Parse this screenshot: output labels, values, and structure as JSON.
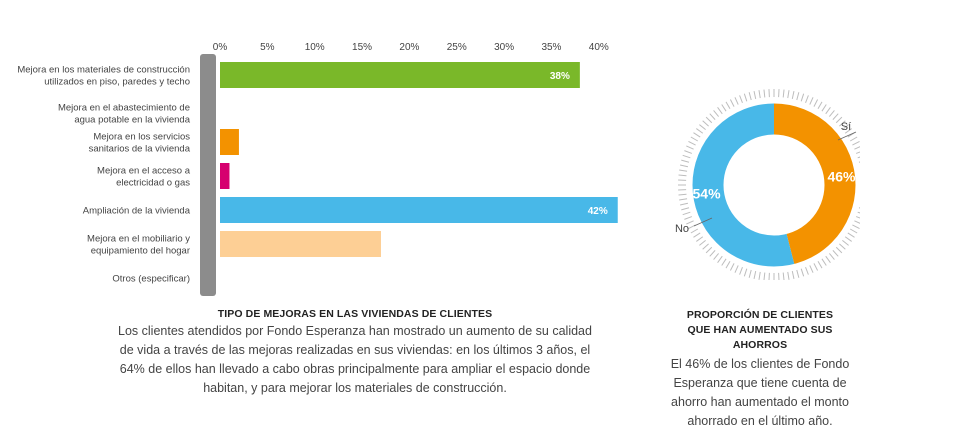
{
  "chart_data": [
    {
      "type": "bar",
      "orientation": "horizontal",
      "categories": [
        [
          "Mejora en los materiales de construcción",
          "utilizados en piso, paredes y techo"
        ],
        [
          "Mejora en el abastecimiento de",
          "agua potable en la vivienda"
        ],
        [
          "Mejora en los servicios",
          "sanitarios de la vivienda"
        ],
        [
          "Mejora en el acceso a",
          "electricidad o gas"
        ],
        [
          "Ampliación de la vivienda"
        ],
        [
          "Mejora en el mobiliario y",
          "equipamiento del hogar"
        ],
        [
          "Otros (especificar)"
        ]
      ],
      "values": [
        38,
        0,
        2,
        1,
        42,
        17,
        0
      ],
      "colors": [
        "#7ab829",
        "#7ab829",
        "#f39200",
        "#d6006f",
        "#48b8e8",
        "#fdcf95",
        "#cccccc"
      ],
      "data_labels": [
        "38%",
        "",
        "",
        "",
        "42%",
        "",
        ""
      ],
      "tick_labels": [
        "0%",
        "5%",
        "10%",
        "15%",
        "20%",
        "25%",
        "30%",
        "35%",
        "40%"
      ],
      "xlim": [
        0,
        42
      ],
      "title": "TIPO DE MEJORAS EN LAS VIVIENDAS DE CLIENTES",
      "xlabel": "",
      "ylabel": ""
    },
    {
      "type": "pie",
      "style": "donut",
      "categories": [
        "Sí",
        "No"
      ],
      "values": [
        46,
        54
      ],
      "labels": [
        "46%",
        "54%"
      ],
      "colors": [
        "#f39200",
        "#48b8e8"
      ],
      "title": "PROPORCIÓN DE CLIENTES QUE HAN AUMENTADO SUS AHORROS"
    }
  ],
  "left_caption": {
    "title": "TIPO DE MEJORAS EN LAS VIVIENDAS DE CLIENTES",
    "body": "Los clientes atendidos por Fondo Esperanza han mostrado un aumento de su calidad de vida a través de las mejoras realizadas en sus viviendas: en los últimos 3 años, el 64% de ellos han llevado a cabo obras principalmente para ampliar el espacio donde habitan, y para mejorar los materiales de construcción."
  },
  "right_caption": {
    "title_line1": "PROPORCIÓN DE CLIENTES",
    "title_line2": "QUE HAN AUMENTADO SUS AHORROS",
    "body": "El 46% de los clientes de Fondo Esperanza que tiene cuenta de ahorro han aumentado el monto ahorrado en el último año."
  }
}
